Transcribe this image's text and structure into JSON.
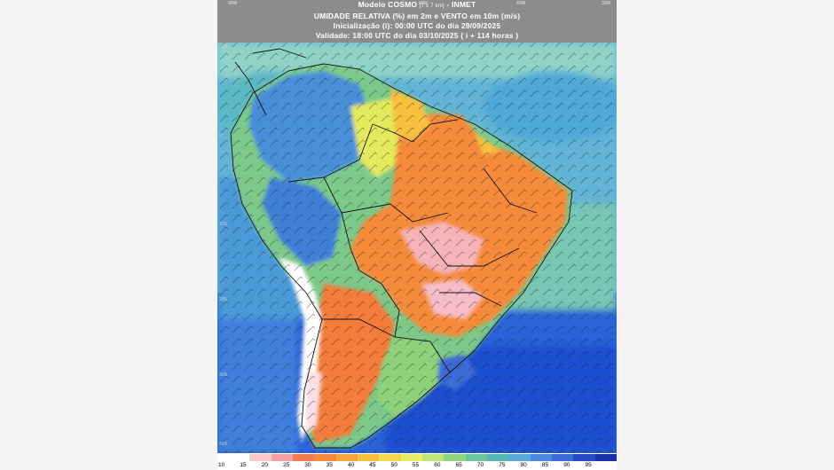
{
  "header": {
    "line1_main": "Modelo COSMO",
    "line1_res": "[7 x 7 km]",
    "line1_org": "- INMET",
    "line2": "UMIDADE RELATIVA (%) em 2m e VENTO em 10m (m/s)",
    "line3": "Inicialização (i): 00:00 UTC do dia 29/09/2025",
    "line4": "Validade: 18:00 UTC do dia 03/10/2025 ( i + 114 horas )"
  },
  "coords_top": [
    "90W",
    "60W",
    "40W",
    "30W"
  ],
  "coords_left": [
    "10N",
    "0",
    "10S",
    "20S",
    "30S",
    "40S"
  ],
  "legend": {
    "labels": [
      "10",
      "15",
      "20",
      "25",
      "30",
      "35",
      "40",
      "45",
      "50",
      "55",
      "60",
      "65",
      "70",
      "75",
      "80",
      "85",
      "90",
      "95"
    ],
    "colors": [
      "#ffffff",
      "#f7c9c9",
      "#f2a0a0",
      "#f47b4f",
      "#f58a3a",
      "#f7a53a",
      "#f8c03c",
      "#f5d94a",
      "#e8ec63",
      "#bfe57a",
      "#8fd67e",
      "#6cc59a",
      "#57b6b4",
      "#5aa8d8",
      "#4a89e0",
      "#3d6ad6",
      "#2a4bc8",
      "#1a2fa8"
    ]
  },
  "colors": {
    "ocean_south": "#1f58d6",
    "ocean_north": "#60b1d8",
    "dry_core": "#f58a3a",
    "very_dry": "#f8d8e0",
    "humid": "#4a89e0"
  }
}
